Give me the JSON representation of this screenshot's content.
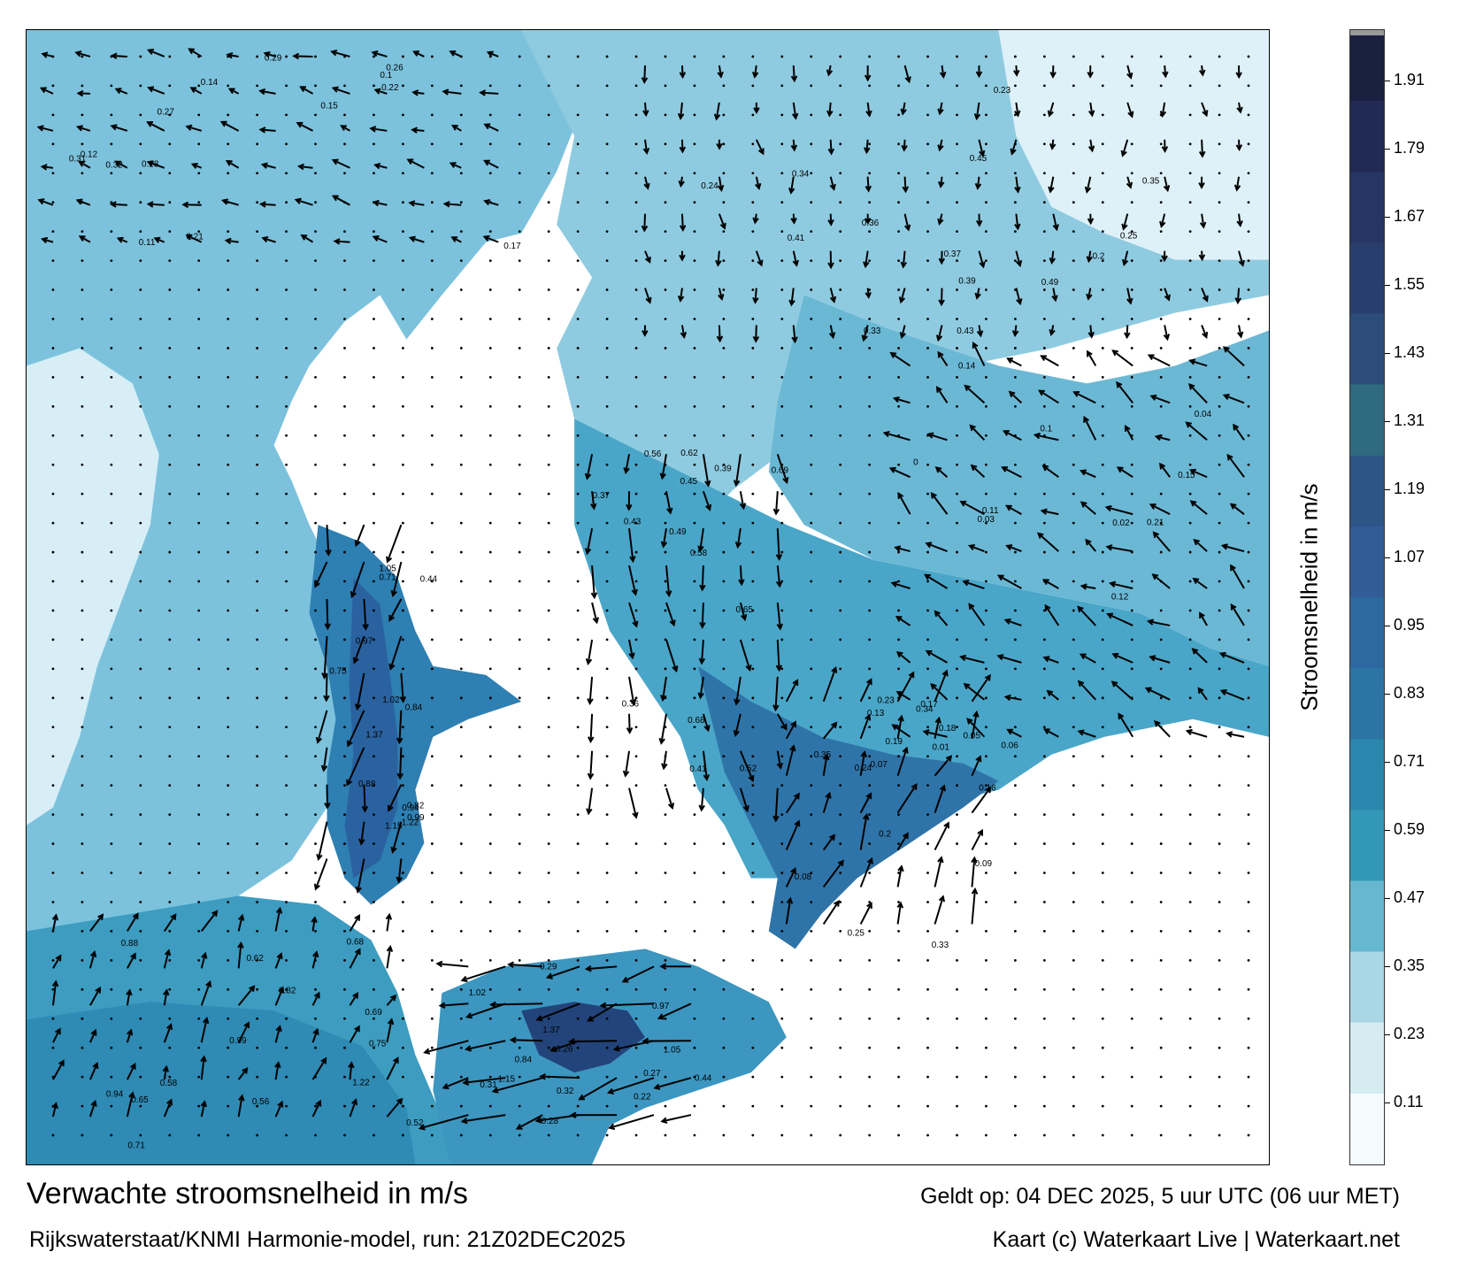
{
  "title": "Verwachte stroomsnelheid in m/s",
  "subtitle": "Rijkswaterstaat/KNMI Harmonie-model, run: 21Z02DEC2025",
  "valid_time": "Geldt op: 04 DEC 2025, 5 uur UTC (06 uur MET)",
  "credit": "Kaart (c) Waterkaart Live | Waterkaart.net",
  "colorbar": {
    "label": "Stroomsnelheid in m/s",
    "min": 0.0,
    "max": 2.0,
    "ticks": [
      "0.11",
      "0.23",
      "0.35",
      "0.47",
      "0.59",
      "0.71",
      "0.83",
      "0.95",
      "1.07",
      "1.19",
      "1.31",
      "1.43",
      "1.55",
      "1.67",
      "1.79",
      "1.91"
    ],
    "colors": [
      "#f5fafc",
      "#d5ecf3",
      "#aad7e5",
      "#66b8d1",
      "#3398b8",
      "#2a86ac",
      "#2b74a3",
      "#2e68a0",
      "#315c95",
      "#2d5586",
      "#2e6a80",
      "#2c4d7a",
      "#283f6e",
      "#263563",
      "#212a55",
      "#1a2140"
    ]
  },
  "land_color": "#ffffff",
  "map_annotations": {
    "speed_labels_sample": [
      "0.21",
      "0.1",
      "0.17",
      "0.15",
      "0.14",
      "0.12",
      "0.11",
      "0.22",
      "0.31",
      "0.29",
      "0.28",
      "0.27",
      "0.26",
      "0.32",
      "0.44",
      "0.97",
      "0.84",
      "1.02",
      "1.05",
      "1.15",
      "1.37",
      "1.22",
      "0.99",
      "0.94",
      "0.88",
      "0.82",
      "0.75",
      "0.71",
      "0.69",
      "0.68",
      "0.65",
      "0.62",
      "0.58",
      "0.56",
      "0.52",
      "0.49",
      "0.45",
      "0.43",
      "0.41",
      "0.39",
      "0.37",
      "0.36",
      "0.35",
      "0.34",
      "0.33",
      "0.25",
      "0.24",
      "0.23",
      "0.2",
      "0.19",
      "0.18",
      "0.16",
      "0.13",
      "0.09",
      "0.08",
      "0.07",
      "0.06",
      "0.05",
      "0.04",
      "0.03",
      "0.02",
      "0.01",
      "0"
    ]
  }
}
